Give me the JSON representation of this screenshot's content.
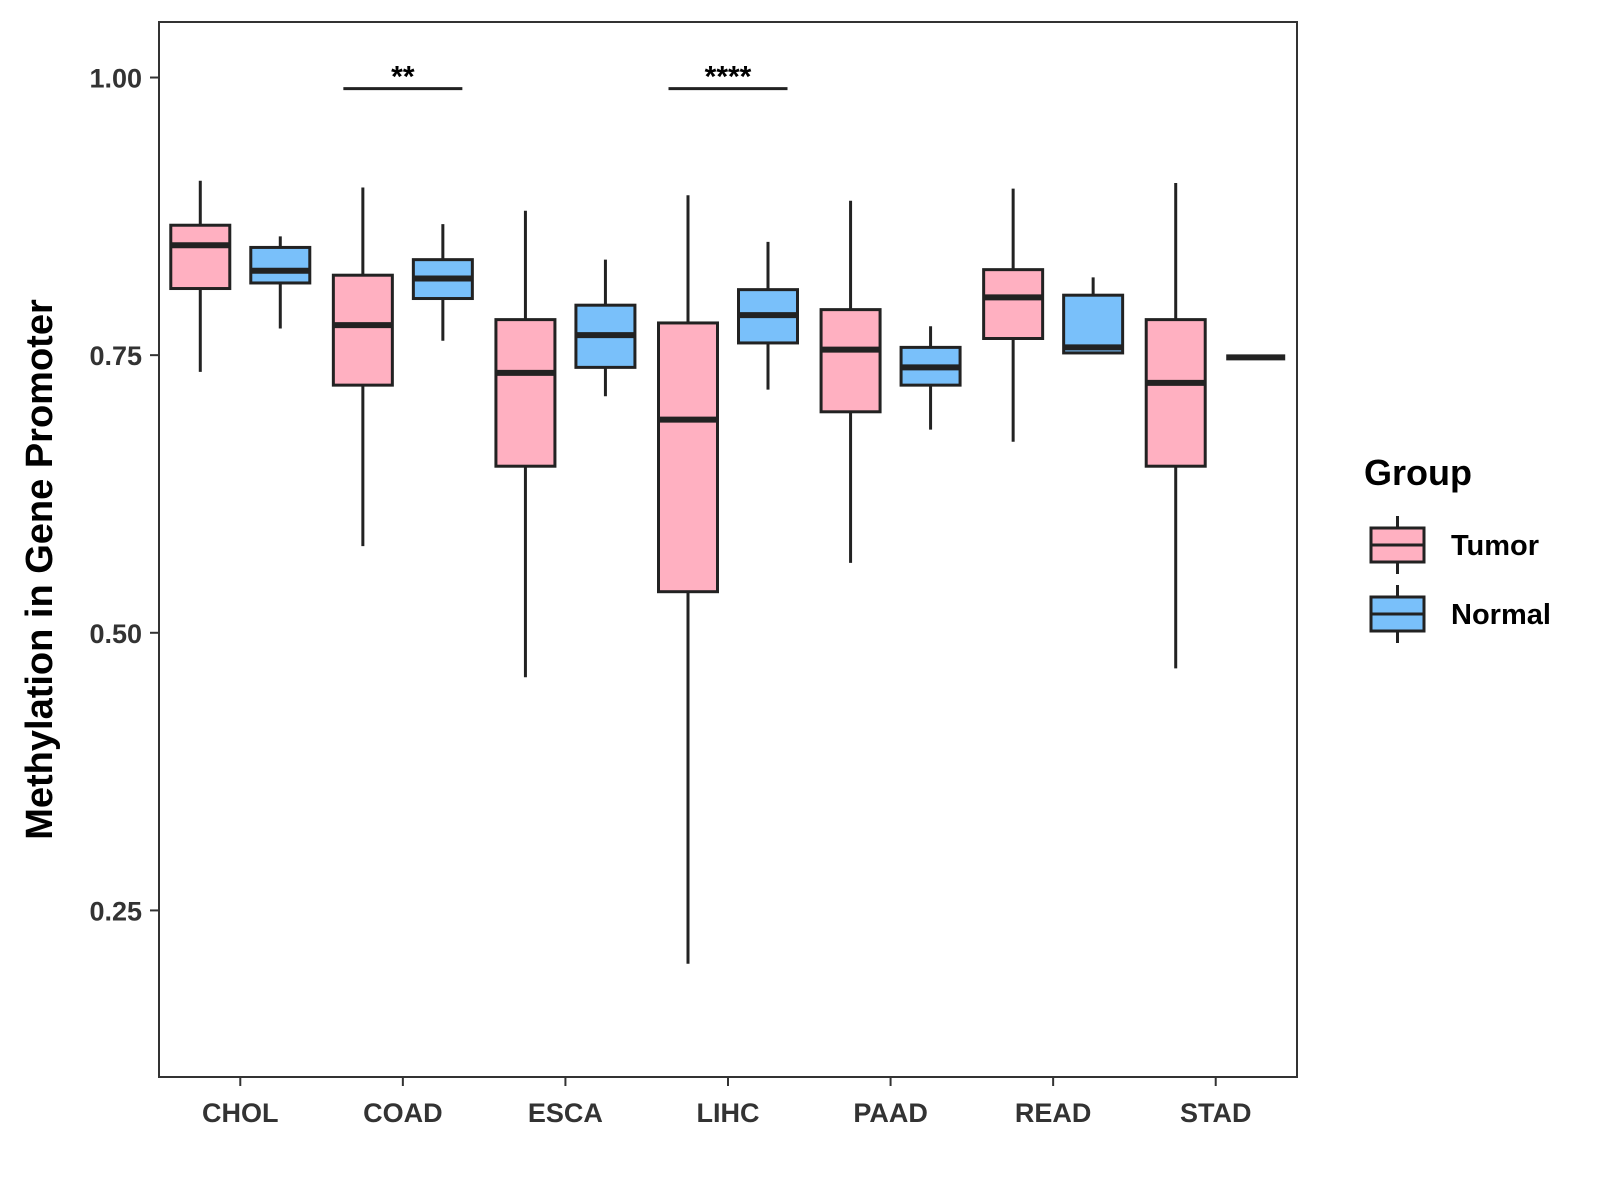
{
  "chart_data": {
    "type": "boxplot",
    "title": "",
    "xlabel": "",
    "ylabel": "Methylation in Gene Promoter",
    "ylim": [
      0.1,
      1.05
    ],
    "yticks": [
      0.25,
      0.5,
      0.75,
      1.0
    ],
    "ytick_labels": [
      "0.25",
      "0.50",
      "0.75",
      "1.00"
    ],
    "categories": [
      "CHOL",
      "COAD",
      "ESCA",
      "LIHC",
      "PAAD",
      "READ",
      "STAD"
    ],
    "legend": {
      "title": "Group",
      "position": "right",
      "entries": [
        {
          "name": "Tumor",
          "color": "#FFB0C1"
        },
        {
          "name": "Normal",
          "color": "#79C0FA"
        }
      ]
    },
    "series": [
      {
        "name": "Tumor",
        "color": "#FFB0C1",
        "boxes": [
          {
            "min": 0.735,
            "q1": 0.81,
            "median": 0.849,
            "q3": 0.867,
            "max": 0.907
          },
          {
            "min": 0.578,
            "q1": 0.723,
            "median": 0.777,
            "q3": 0.822,
            "max": 0.901
          },
          {
            "min": 0.46,
            "q1": 0.65,
            "median": 0.734,
            "q3": 0.782,
            "max": 0.88
          },
          {
            "min": 0.202,
            "q1": 0.537,
            "median": 0.692,
            "q3": 0.779,
            "max": 0.894
          },
          {
            "min": 0.563,
            "q1": 0.699,
            "median": 0.755,
            "q3": 0.791,
            "max": 0.889
          },
          {
            "min": 0.672,
            "q1": 0.765,
            "median": 0.802,
            "q3": 0.827,
            "max": 0.9
          },
          {
            "min": 0.468,
            "q1": 0.65,
            "median": 0.725,
            "q3": 0.782,
            "max": 0.905
          }
        ]
      },
      {
        "name": "Normal",
        "color": "#79C0FA",
        "boxes": [
          {
            "min": 0.774,
            "q1": 0.815,
            "median": 0.826,
            "q3": 0.847,
            "max": 0.857
          },
          {
            "min": 0.763,
            "q1": 0.801,
            "median": 0.819,
            "q3": 0.836,
            "max": 0.868
          },
          {
            "min": 0.713,
            "q1": 0.739,
            "median": 0.768,
            "q3": 0.795,
            "max": 0.836
          },
          {
            "min": 0.719,
            "q1": 0.761,
            "median": 0.786,
            "q3": 0.809,
            "max": 0.852
          },
          {
            "min": 0.683,
            "q1": 0.723,
            "median": 0.739,
            "q3": 0.757,
            "max": 0.776
          },
          {
            "min": 0.752,
            "q1": 0.752,
            "median": 0.757,
            "q3": 0.804,
            "max": 0.82
          },
          {
            "min": 0.748,
            "q1": 0.748,
            "median": 0.748,
            "q3": 0.748,
            "max": 0.748
          }
        ]
      }
    ],
    "annotations": [
      {
        "category": "COAD",
        "y": 0.99,
        "label": "**"
      },
      {
        "category": "LIHC",
        "y": 0.99,
        "label": "****"
      }
    ]
  }
}
